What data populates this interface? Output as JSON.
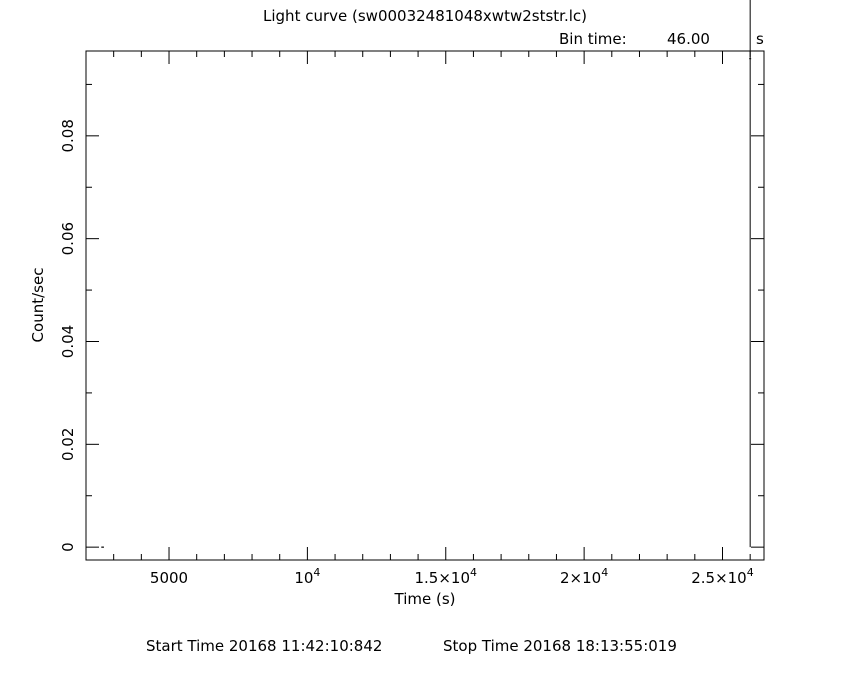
{
  "chart_data": {
    "type": "line",
    "title": "Light curve (sw00032481048xwtw2ststr.lc)",
    "bin_time_label": "Bin time:",
    "bin_time_value": "46.00",
    "bin_time_unit": "s",
    "xlabel": "Time (s)",
    "ylabel": "Count/sec",
    "xlim": [
      2000,
      26500
    ],
    "ylim": [
      -0.0025,
      0.0965
    ],
    "x_ticks": [
      {
        "value": 5000,
        "mantissa": "5000",
        "exp": ""
      },
      {
        "value": 10000,
        "mantissa": "10",
        "exp": "4"
      },
      {
        "value": 15000,
        "mantissa": "1.5×10",
        "exp": "4"
      },
      {
        "value": 20000,
        "mantissa": "2×10",
        "exp": "4"
      },
      {
        "value": 25000,
        "mantissa": "2.5×10",
        "exp": "4"
      }
    ],
    "y_ticks": [
      {
        "value": 0,
        "label": "0"
      },
      {
        "value": 0.02,
        "label": "0.02"
      },
      {
        "value": 0.04,
        "label": "0.04"
      },
      {
        "value": 0.06,
        "label": "0.06"
      },
      {
        "value": 0.08,
        "label": "0.08"
      }
    ],
    "series": [
      {
        "x": [
          2600
        ],
        "y": [
          0
        ],
        "xerr": [
          50
        ]
      },
      {
        "x": [
          26000
        ],
        "y": [
          0.095
        ],
        "yerr": [
          0.095
        ]
      }
    ],
    "start_time": "Start Time 20168 11:42:10:842",
    "stop_time": "Stop Time 20168 18:13:55:019",
    "grid": false
  }
}
